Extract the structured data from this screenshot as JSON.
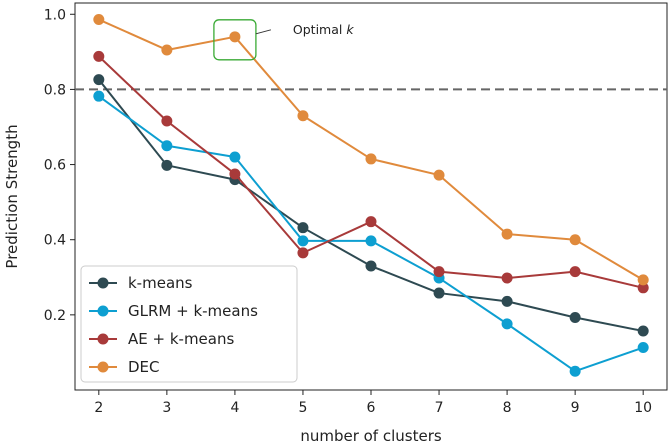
{
  "chart_data": {
    "type": "line",
    "title": "",
    "xlabel": "number of clusters",
    "ylabel": "Prediction Strength",
    "x": [
      2,
      3,
      4,
      5,
      6,
      7,
      8,
      9,
      10
    ],
    "xlim": [
      1.65,
      10.35
    ],
    "ylim": [
      0.0,
      1.03
    ],
    "yticks": [
      0.2,
      0.4,
      0.6,
      0.8,
      1.0
    ],
    "ytick_labels": [
      "0.2",
      "0.4",
      "0.6",
      "0.8",
      "1.0"
    ],
    "xtick_labels": [
      "2",
      "3",
      "4",
      "5",
      "6",
      "7",
      "8",
      "9",
      "10"
    ],
    "grid": false,
    "legend_position": "bottom-left",
    "reference_line": {
      "y": 0.8,
      "style": "dashed",
      "color": "#666666"
    },
    "series": [
      {
        "name": "k-means",
        "color": "#2e4a52",
        "values": [
          0.826,
          0.598,
          0.56,
          0.432,
          0.33,
          0.258,
          0.236,
          0.193,
          0.157
        ]
      },
      {
        "name": "GLRM + k-means",
        "color": "#0d9fd1",
        "values": [
          0.782,
          0.65,
          0.62,
          0.397,
          0.397,
          0.298,
          0.176,
          0.05,
          0.113
        ]
      },
      {
        "name": "AE + k-means",
        "color": "#a83a3a",
        "values": [
          0.888,
          0.716,
          0.575,
          0.365,
          0.448,
          0.315,
          0.298,
          0.315,
          0.272
        ]
      },
      {
        "name": "DEC",
        "color": "#e08a3c",
        "values": [
          0.986,
          0.905,
          0.94,
          0.73,
          0.615,
          0.572,
          0.415,
          0.4,
          0.293
        ]
      }
    ],
    "annotations": [
      {
        "text": "Optimal ",
        "italic_suffix": "k",
        "x": 4,
        "y": 0.94,
        "box_color": "#3aaa35",
        "text_position": "upper-right"
      }
    ]
  }
}
